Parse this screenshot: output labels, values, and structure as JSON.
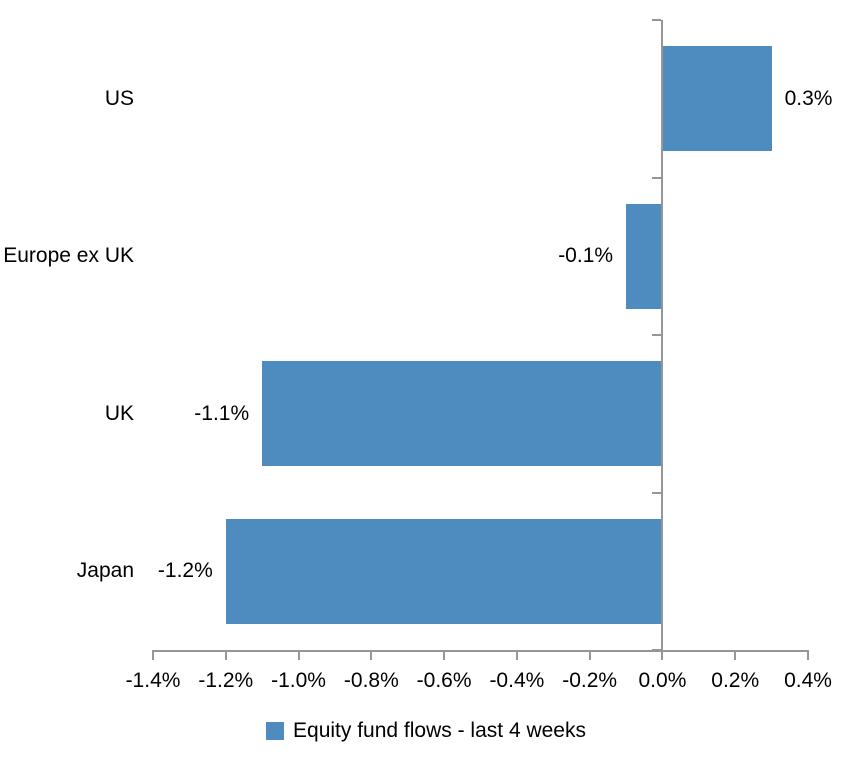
{
  "chart_data": {
    "type": "bar",
    "orientation": "horizontal",
    "title": "",
    "categories": [
      "US",
      "Europe ex UK",
      "UK",
      "Japan"
    ],
    "series": [
      {
        "name": "Equity fund flows - last 4 weeks",
        "values": [
          0.3,
          -0.1,
          -1.1,
          -1.2
        ],
        "data_labels": [
          "0.3%",
          "-0.1%",
          "-1.1%",
          "-1.2%"
        ]
      }
    ],
    "x_axis": {
      "min": -1.4,
      "max": 0.4,
      "tick_step": 0.2,
      "tick_labels": [
        "-1.4%",
        "-1.2%",
        "-1.0%",
        "-0.8%",
        "-0.6%",
        "-0.4%",
        "-0.2%",
        "0.0%",
        "0.2%",
        "0.4%"
      ],
      "ticks": [
        -1.4,
        -1.2,
        -1.0,
        -0.8,
        -0.6,
        -0.4,
        -0.2,
        0.0,
        0.2,
        0.4
      ]
    },
    "legend": {
      "label": "Equity fund flows - last 4 weeks",
      "position": "bottom"
    },
    "grid": false,
    "colors": {
      "bar": "#4E8BBE",
      "axis": "#969696",
      "text": "#000000",
      "background": "#FFFFFF"
    }
  }
}
